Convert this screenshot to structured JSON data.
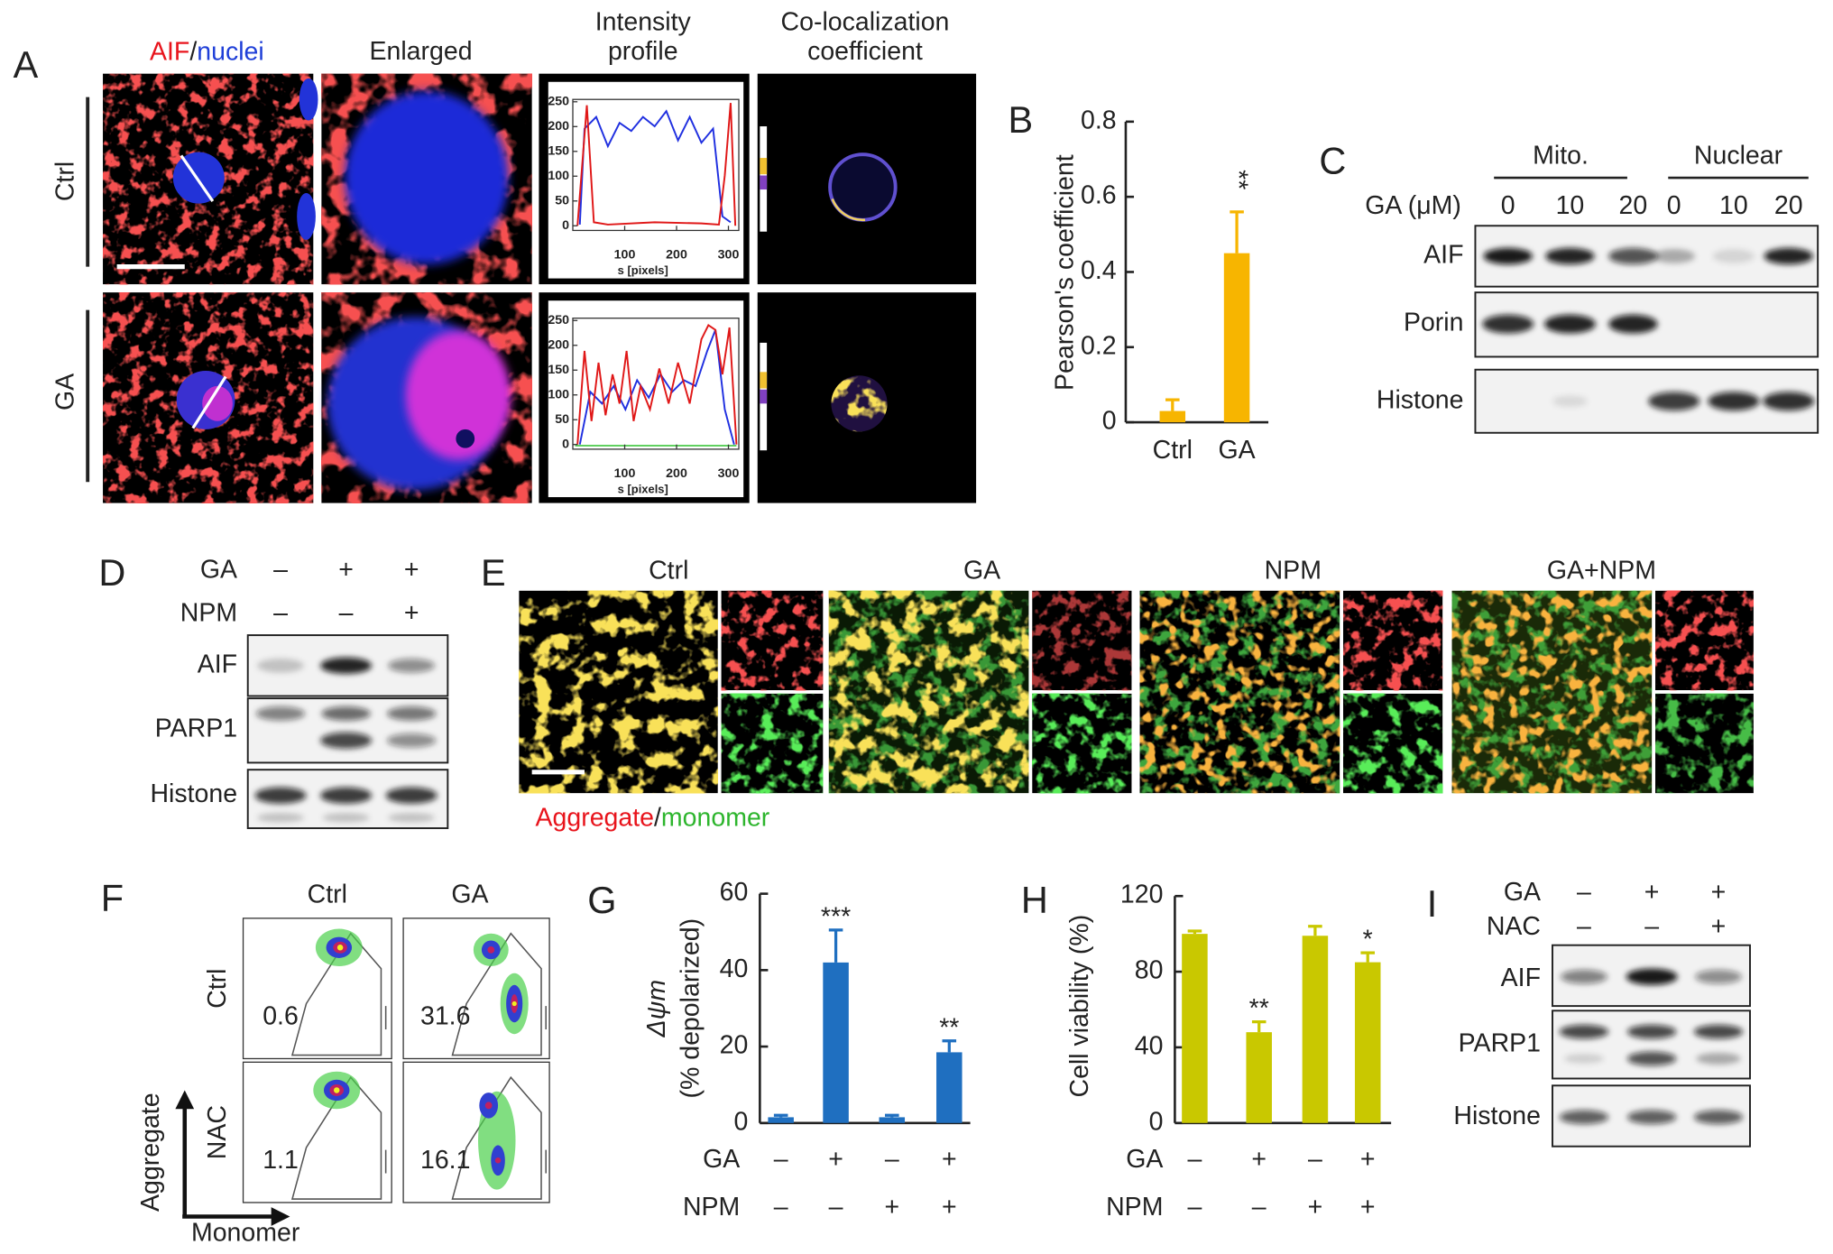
{
  "chart_data": [
    {
      "panel": "B",
      "type": "bar",
      "ylabel": [
        "Pearson's coefficient"
      ],
      "categories": [
        "Ctrl",
        "GA"
      ],
      "values": [
        0.03,
        0.45
      ],
      "errors": [
        0.03,
        0.11
      ],
      "significance": [
        null,
        "**"
      ],
      "color": "#f7b500",
      "ylim": [
        0,
        0.8
      ],
      "yticks": [
        0,
        0.2,
        0.4,
        0.6,
        0.8
      ]
    },
    {
      "panel": "G",
      "type": "bar",
      "ylabel": [
        "Δψm",
        "(% depolarized)"
      ],
      "values": [
        1.5,
        42,
        1.5,
        18.5
      ],
      "errors": [
        0.5,
        8.5,
        0.5,
        3
      ],
      "significance": [
        null,
        "***",
        null,
        "**"
      ],
      "color": "#1f6fc0",
      "ylim": [
        0,
        60
      ],
      "yticks": [
        0,
        20,
        40,
        60
      ],
      "conditions": [
        {
          "name": "GA",
          "values": [
            "–",
            "+",
            "–",
            "+"
          ]
        },
        {
          "name": "NPM",
          "values": [
            "–",
            "–",
            "+",
            "+"
          ]
        }
      ]
    },
    {
      "panel": "H",
      "type": "bar",
      "ylabel": [
        "Cell viability (%)"
      ],
      "values": [
        100,
        48,
        99,
        85
      ],
      "errors": [
        1.5,
        5.5,
        5,
        5
      ],
      "significance": [
        null,
        "**",
        null,
        "*"
      ],
      "color": "#c9c800",
      "ylim": [
        0,
        120
      ],
      "yticks": [
        0,
        40,
        80,
        120
      ],
      "conditions": [
        {
          "name": "GA",
          "values": [
            "–",
            "+",
            "–",
            "+"
          ]
        },
        {
          "name": "NPM",
          "values": [
            "–",
            "–",
            "+",
            "+"
          ]
        }
      ]
    }
  ],
  "panel_a": {
    "label": "A",
    "title": [
      "AIF",
      "/",
      "nuclei"
    ],
    "columns": [
      [
        "Enlarged"
      ],
      [
        "Intensity",
        "profile"
      ],
      [
        "Co-localization",
        "coefficient"
      ]
    ],
    "rows": [
      "Ctrl",
      "GA"
    ],
    "profile": {
      "ylim": [
        0,
        250
      ],
      "yticks": [
        0,
        50,
        100,
        150,
        200,
        250
      ],
      "xlim": [
        0,
        320
      ],
      "xticks": [
        100,
        200,
        300
      ],
      "xlabel": "s [pixels]"
    }
  },
  "panel_c": {
    "label": "C",
    "groups": [
      "Mito.",
      "Nuclear"
    ],
    "dose_label": "GA (μM)",
    "doses": [
      0,
      10,
      20,
      0,
      10,
      20
    ],
    "rows": [
      "AIF",
      "Porin",
      "Histone"
    ]
  },
  "panel_d": {
    "label": "D",
    "conditions": [
      {
        "name": "GA",
        "values": [
          "–",
          "+",
          "+"
        ]
      },
      {
        "name": "NPM",
        "values": [
          "–",
          "–",
          "+"
        ]
      }
    ],
    "rows": [
      "AIF",
      "PARP1",
      "Histone"
    ]
  },
  "panel_e": {
    "label": "E",
    "columns": [
      "Ctrl",
      "GA",
      "NPM",
      "GA+NPM"
    ],
    "legend": [
      "Aggregate",
      "/",
      "monomer"
    ]
  },
  "panel_f": {
    "label": "F",
    "columns": [
      "Ctrl",
      "GA"
    ],
    "rows": [
      "Ctrl",
      "NAC"
    ],
    "percentages": [
      [
        0.6,
        31.6
      ],
      [
        1.1,
        16.1
      ]
    ],
    "ylabel": "Aggregate",
    "xlabel": "Monomer"
  },
  "panel_i": {
    "label": "I",
    "conditions": [
      {
        "name": "GA",
        "values": [
          "–",
          "+",
          "+"
        ]
      },
      {
        "name": "NAC",
        "values": [
          "–",
          "–",
          "+"
        ]
      }
    ],
    "rows": [
      "AIF",
      "PARP1",
      "Histone"
    ]
  }
}
